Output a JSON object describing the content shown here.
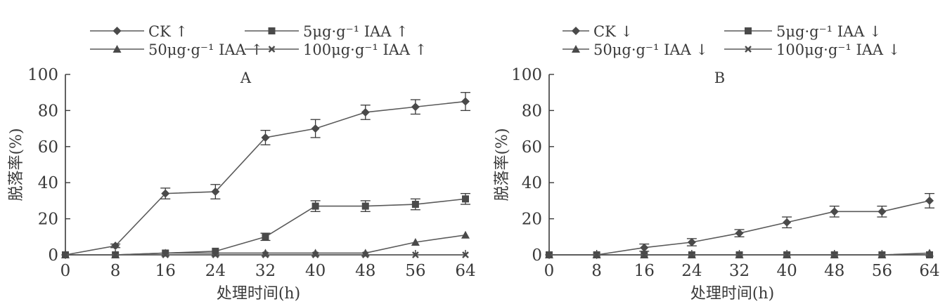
{
  "chart_data": [
    {
      "type": "line",
      "title": "A",
      "xlabel": "处理时间(h)",
      "ylabel": "脱落率(%)",
      "x": [
        0,
        8,
        16,
        24,
        32,
        40,
        48,
        56,
        64
      ],
      "x_ticks": [
        "0",
        "8",
        "16",
        "24",
        "32",
        "40",
        "48",
        "56",
        "64"
      ],
      "y_ticks": [
        "0",
        "20",
        "40",
        "60",
        "80",
        "100"
      ],
      "xlim": [
        0,
        64
      ],
      "ylim": [
        0,
        100
      ],
      "grid": false,
      "legend_position": "top",
      "series": [
        {
          "name": "CK ↑",
          "marker": "diamond",
          "line": "solid",
          "values": [
            0,
            5,
            34,
            35,
            65,
            70,
            79,
            82,
            85
          ],
          "errors": [
            0,
            1,
            3,
            4,
            4,
            5,
            4,
            4,
            5
          ]
        },
        {
          "name": "5μg·g⁻¹ IAA ↑",
          "marker": "square",
          "line": "solid",
          "values": [
            0,
            0,
            1,
            2,
            10,
            27,
            27,
            28,
            31
          ],
          "errors": [
            0,
            0,
            0,
            0,
            2,
            3,
            3,
            3,
            3
          ]
        },
        {
          "name": "50μg·g⁻¹ IAA ↑",
          "marker": "triangle",
          "line": "solid",
          "values": [
            0,
            0,
            1,
            1,
            1,
            1,
            1,
            7,
            11
          ],
          "errors": [
            0,
            0,
            0,
            0,
            0,
            0,
            0,
            0,
            0
          ]
        },
        {
          "name": "100μg·g⁻¹ IAA ↑",
          "marker": "x",
          "line": "solid",
          "values": [
            0,
            0,
            0,
            0,
            0,
            0,
            0,
            0,
            0
          ],
          "errors": [
            0,
            0,
            0,
            0,
            0,
            0,
            0,
            0,
            0
          ]
        }
      ]
    },
    {
      "type": "line",
      "title": "B",
      "xlabel": "处理时间(h)",
      "ylabel": "脱落率(%)",
      "x": [
        0,
        8,
        16,
        24,
        32,
        40,
        48,
        56,
        64
      ],
      "x_ticks": [
        "0",
        "8",
        "16",
        "24",
        "32",
        "40",
        "48",
        "56",
        "64"
      ],
      "y_ticks": [
        "0",
        "20",
        "40",
        "60",
        "80",
        "100"
      ],
      "xlim": [
        0,
        64
      ],
      "ylim": [
        0,
        100
      ],
      "grid": false,
      "legend_position": "top",
      "series": [
        {
          "name": "CK ↓",
          "marker": "diamond",
          "line": "solid",
          "values": [
            0,
            0,
            4,
            7,
            12,
            18,
            24,
            24,
            30
          ],
          "errors": [
            0,
            0,
            2,
            2,
            2,
            3,
            3,
            3,
            4
          ]
        },
        {
          "name": "5μg·g⁻¹ IAA ↓",
          "marker": "square",
          "line": "solid",
          "values": [
            0,
            0,
            0,
            0,
            0,
            0,
            0,
            0,
            0
          ],
          "errors": [
            0,
            0,
            0,
            0,
            0,
            0,
            0,
            0,
            0
          ]
        },
        {
          "name": "50μg·g⁻¹ IAA ↓",
          "marker": "triangle",
          "line": "solid",
          "values": [
            0,
            0,
            0,
            0,
            0,
            0,
            0,
            0,
            1
          ],
          "errors": [
            0,
            0,
            0,
            0,
            0,
            0,
            0,
            0,
            0
          ]
        },
        {
          "name": "100μg·g⁻¹ IAA ↓",
          "marker": "x",
          "line": "solid",
          "values": [
            0,
            0,
            0,
            0,
            0,
            0,
            0,
            0,
            0
          ],
          "errors": [
            0,
            0,
            0,
            0,
            0,
            0,
            0,
            0,
            0
          ]
        }
      ]
    }
  ],
  "colors": {
    "ink": "#3a3a3a",
    "line": "#5a5a5a",
    "marker": "#4a4a4a"
  }
}
